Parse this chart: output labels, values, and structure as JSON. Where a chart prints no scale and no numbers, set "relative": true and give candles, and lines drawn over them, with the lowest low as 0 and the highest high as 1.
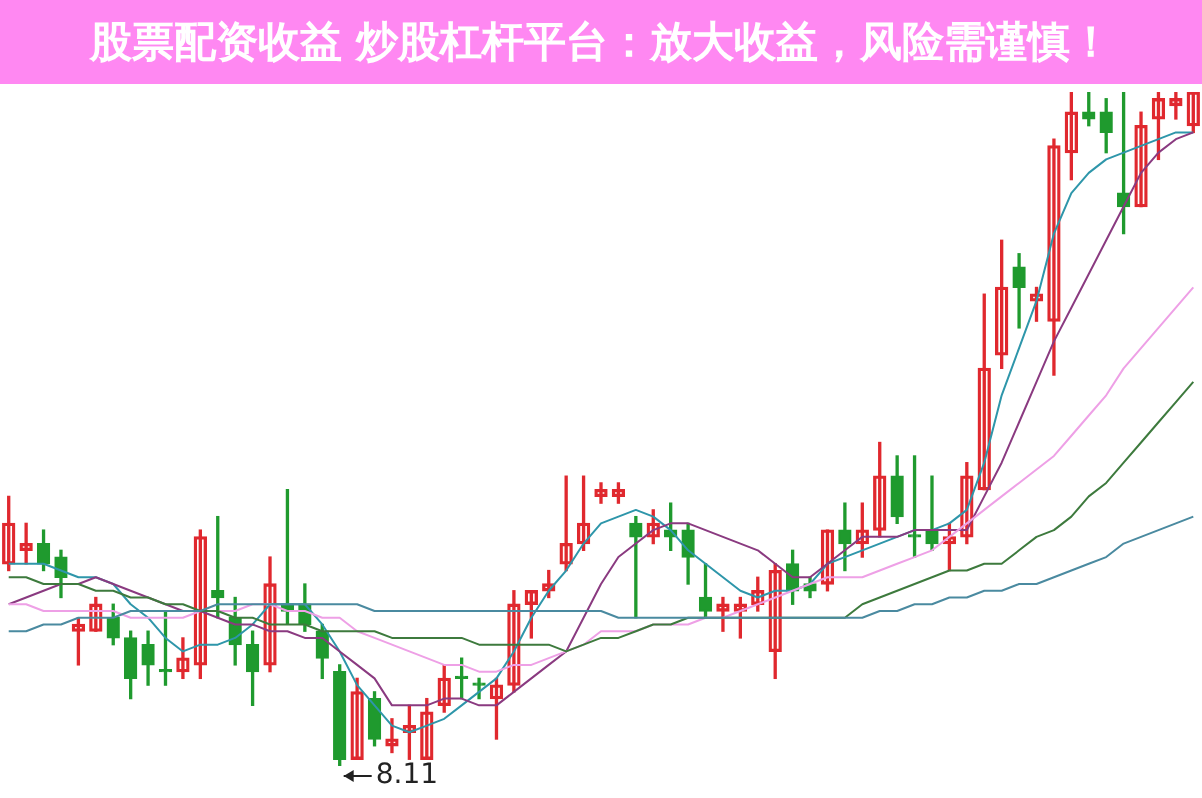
{
  "chart_data": {
    "type": "candlestick",
    "title": "股票配资收益 炒股杠杆平台：放大收益，风险需谨慎！",
    "annotations": [
      "8.11"
    ],
    "relative": true,
    "marker": "none",
    "categories": [
      null,
      null,
      null,
      null,
      null,
      null,
      null,
      null,
      null,
      null,
      null,
      null,
      null,
      null,
      null,
      null,
      null,
      null,
      null,
      null,
      null,
      null,
      null,
      null,
      null,
      null,
      null,
      null,
      null,
      null,
      null,
      null,
      null,
      null,
      null,
      null,
      null,
      null,
      null,
      null,
      null,
      null,
      null,
      null,
      null,
      null,
      null,
      null,
      null,
      null,
      null,
      null,
      null,
      null,
      null,
      null,
      null,
      null,
      null,
      null,
      null,
      null,
      null,
      null,
      null,
      null,
      null,
      null,
      null
    ],
    "ohlc": [
      [
        0.3,
        0.4,
        0.29,
        0.36
      ],
      [
        0.32,
        0.36,
        0.3,
        0.33
      ],
      [
        0.33,
        0.35,
        0.29,
        0.3
      ],
      [
        0.31,
        0.32,
        0.25,
        0.28
      ],
      [
        0.2,
        0.22,
        0.15,
        0.21
      ],
      [
        0.2,
        0.25,
        0.2,
        0.24
      ],
      [
        0.22,
        0.24,
        0.18,
        0.19
      ],
      [
        0.19,
        0.2,
        0.1,
        0.13
      ],
      [
        0.18,
        0.2,
        0.12,
        0.15
      ],
      [
        0.14,
        0.23,
        0.12,
        0.14
      ],
      [
        0.14,
        0.19,
        0.13,
        0.16
      ],
      [
        0.15,
        0.35,
        0.13,
        0.34
      ],
      [
        0.26,
        0.37,
        0.22,
        0.25
      ],
      [
        0.22,
        0.25,
        0.15,
        0.18
      ],
      [
        0.18,
        0.2,
        0.09,
        0.14
      ],
      [
        0.15,
        0.31,
        0.14,
        0.27
      ],
      [
        0.24,
        0.41,
        0.21,
        0.23
      ],
      [
        0.24,
        0.27,
        0.2,
        0.21
      ],
      [
        0.2,
        0.21,
        0.13,
        0.16
      ],
      [
        0.14,
        0.15,
        0,
        0.01
      ],
      [
        0.01,
        0.13,
        0.01,
        0.11
      ],
      [
        0.1,
        0.11,
        0.03,
        0.04
      ],
      [
        0.03,
        0.07,
        0.02,
        0.04
      ],
      [
        0.05,
        0.09,
        0.01,
        0.06
      ],
      [
        0.01,
        0.1,
        0.01,
        0.08
      ],
      [
        0.09,
        0.15,
        0.08,
        0.13
      ],
      [
        0.13,
        0.16,
        0.1,
        0.13
      ],
      [
        0.12,
        0.13,
        0.1,
        0.12
      ],
      [
        0.1,
        0.13,
        0.04,
        0.12
      ],
      [
        0.12,
        0.26,
        0.11,
        0.24
      ],
      [
        0.24,
        0.26,
        0.19,
        0.26
      ],
      [
        0.26,
        0.29,
        0.25,
        0.27
      ],
      [
        0.3,
        0.43,
        0.29,
        0.33
      ],
      [
        0.33,
        0.43,
        0.32,
        0.36
      ],
      [
        0.4,
        0.42,
        0.39,
        0.41
      ],
      [
        0.4,
        0.42,
        0.39,
        0.41
      ],
      [
        0.36,
        0.37,
        0.22,
        0.34
      ],
      [
        0.34,
        0.38,
        0.33,
        0.36
      ],
      [
        0.35,
        0.39,
        0.32,
        0.34
      ],
      [
        0.35,
        0.36,
        0.27,
        0.31
      ],
      [
        0.25,
        0.3,
        0.22,
        0.23
      ],
      [
        0.23,
        0.25,
        0.2,
        0.24
      ],
      [
        0.23,
        0.25,
        0.19,
        0.24
      ],
      [
        0.24,
        0.28,
        0.23,
        0.26
      ],
      [
        0.17,
        0.3,
        0.13,
        0.29
      ],
      [
        0.3,
        0.32,
        0.24,
        0.26
      ],
      [
        0.27,
        0.28,
        0.25,
        0.26
      ],
      [
        0.27,
        0.35,
        0.26,
        0.35
      ],
      [
        0.35,
        0.39,
        0.29,
        0.33
      ],
      [
        0.33,
        0.39,
        0.31,
        0.35
      ],
      [
        0.35,
        0.48,
        0.34,
        0.43
      ],
      [
        0.43,
        0.46,
        0.36,
        0.37
      ],
      [
        0.34,
        0.46,
        0.31,
        0.34
      ],
      [
        0.35,
        0.43,
        0.32,
        0.33
      ],
      [
        0.33,
        0.36,
        0.29,
        0.34
      ],
      [
        0.34,
        0.45,
        0.33,
        0.43
      ],
      [
        0.41,
        0.7,
        0.41,
        0.59
      ],
      [
        0.61,
        0.78,
        0.59,
        0.71
      ],
      [
        0.74,
        0.76,
        0.65,
        0.71
      ],
      [
        0.69,
        0.71,
        0.66,
        0.7
      ],
      [
        0.66,
        0.93,
        0.58,
        0.92
      ],
      [
        0.91,
        1,
        0.87,
        0.97
      ],
      [
        0.97,
        1,
        0.95,
        0.96
      ],
      [
        0.97,
        0.99,
        0.91,
        0.94
      ],
      [
        0.85,
        1,
        0.79,
        0.83
      ],
      [
        0.83,
        0.97,
        0.83,
        0.95
      ],
      [
        0.96,
        1,
        0.9,
        0.99
      ],
      [
        0.98,
        1,
        0.96,
        0.99
      ],
      [
        0.95,
        1,
        0.94,
        1
      ]
    ],
    "colors": [
      "#e0282e",
      "#e0282e",
      "#1f9a2e",
      "#1f9a2e",
      "#e0282e",
      "#e0282e",
      "#1f9a2e",
      "#1f9a2e",
      "#1f9a2e",
      "#1f9a2e",
      "#e0282e",
      "#e0282e",
      "#1f9a2e",
      "#1f9a2e",
      "#1f9a2e",
      "#e0282e",
      "#1f9a2e",
      "#1f9a2e",
      "#1f9a2e",
      "#1f9a2e",
      "#e0282e",
      "#1f9a2e",
      "#e0282e",
      "#e0282e",
      "#e0282e",
      "#e0282e",
      "#1f9a2e",
      "#1f9a2e",
      "#e0282e",
      "#e0282e",
      "#e0282e",
      "#e0282e",
      "#e0282e",
      "#e0282e",
      "#e0282e",
      "#e0282e",
      "#1f9a2e",
      "#e0282e",
      "#1f9a2e",
      "#1f9a2e",
      "#1f9a2e",
      "#e0282e",
      "#e0282e",
      "#e0282e",
      "#e0282e",
      "#1f9a2e",
      "#1f9a2e",
      "#e0282e",
      "#1f9a2e",
      "#e0282e",
      "#e0282e",
      "#1f9a2e",
      "#1f9a2e",
      "#1f9a2e",
      "#e0282e",
      "#e0282e",
      "#e0282e",
      "#e0282e",
      "#1f9a2e",
      "#e0282e",
      "#e0282e",
      "#e0282e",
      "#1f9a2e",
      "#1f9a2e",
      "#1f9a2e",
      "#e0282e",
      "#e0282e",
      "#e0282e",
      "#e0282e"
    ],
    "series": [
      {
        "type": "line",
        "color": "#4a8aa0",
        "values": [
          0.2,
          0.2,
          0.21,
          0.21,
          0.22,
          0.22,
          0.22,
          0.23,
          0.23,
          0.23,
          0.23,
          0.23,
          0.24,
          0.24,
          0.24,
          0.24,
          0.24,
          0.24,
          0.24,
          0.24,
          0.24,
          0.23,
          0.23,
          0.23,
          0.23,
          0.23,
          0.23,
          0.23,
          0.23,
          0.23,
          0.23,
          0.23,
          0.23,
          0.23,
          0.23,
          0.22,
          0.22,
          0.22,
          0.22,
          0.22,
          0.22,
          0.22,
          0.22,
          0.22,
          0.22,
          0.22,
          0.22,
          0.22,
          0.22,
          0.22,
          0.23,
          0.23,
          0.24,
          0.24,
          0.25,
          0.25,
          0.26,
          0.26,
          0.27,
          0.27,
          0.28,
          0.29,
          0.3,
          0.31,
          0.33,
          0.34,
          0.35,
          0.36,
          0.37
        ]
      },
      {
        "type": "line",
        "color": "#3d7a3d",
        "values": [
          0.28,
          0.28,
          0.27,
          0.27,
          0.27,
          0.26,
          0.26,
          0.25,
          0.25,
          0.24,
          0.24,
          0.23,
          0.23,
          0.22,
          0.22,
          0.21,
          0.21,
          0.21,
          0.2,
          0.2,
          0.2,
          0.2,
          0.19,
          0.19,
          0.19,
          0.19,
          0.19,
          0.18,
          0.18,
          0.18,
          0.18,
          0.18,
          0.17,
          0.18,
          0.19,
          0.19,
          0.2,
          0.21,
          0.21,
          0.22,
          0.22,
          0.22,
          0.22,
          0.22,
          0.22,
          0.22,
          0.22,
          0.22,
          0.22,
          0.24,
          0.25,
          0.26,
          0.27,
          0.28,
          0.29,
          0.29,
          0.3,
          0.3,
          0.32,
          0.34,
          0.35,
          0.37,
          0.4,
          0.42,
          0.45,
          0.48,
          0.51,
          0.54,
          0.57
        ]
      },
      {
        "type": "line",
        "color": "#eea0e6",
        "values": [
          0.24,
          0.24,
          0.23,
          0.23,
          0.23,
          0.23,
          0.23,
          0.22,
          0.22,
          0.22,
          0.22,
          0.23,
          0.23,
          0.23,
          0.24,
          0.24,
          0.23,
          0.23,
          0.22,
          0.22,
          0.2,
          0.19,
          0.18,
          0.17,
          0.16,
          0.15,
          0.15,
          0.14,
          0.14,
          0.15,
          0.15,
          0.16,
          0.17,
          0.18,
          0.2,
          0.2,
          0.2,
          0.21,
          0.21,
          0.21,
          0.22,
          0.22,
          0.23,
          0.24,
          0.25,
          0.26,
          0.27,
          0.28,
          0.28,
          0.28,
          0.29,
          0.3,
          0.31,
          0.32,
          0.34,
          0.36,
          0.38,
          0.4,
          0.42,
          0.44,
          0.46,
          0.49,
          0.52,
          0.55,
          0.59,
          0.62,
          0.65,
          0.68,
          0.71
        ]
      },
      {
        "type": "line",
        "color": "#8a3a80",
        "values": [
          0.24,
          0.25,
          0.26,
          0.27,
          0.27,
          0.28,
          0.27,
          0.26,
          0.25,
          0.24,
          0.23,
          0.23,
          0.22,
          0.21,
          0.21,
          0.2,
          0.2,
          0.19,
          0.19,
          0.17,
          0.15,
          0.13,
          0.09,
          0.09,
          0.09,
          0.1,
          0.1,
          0.09,
          0.09,
          0.11,
          0.13,
          0.15,
          0.17,
          0.22,
          0.27,
          0.31,
          0.33,
          0.35,
          0.36,
          0.36,
          0.35,
          0.34,
          0.33,
          0.32,
          0.3,
          0.28,
          0.28,
          0.3,
          0.32,
          0.34,
          0.34,
          0.34,
          0.35,
          0.35,
          0.35,
          0.35,
          0.4,
          0.45,
          0.51,
          0.57,
          0.63,
          0.68,
          0.73,
          0.78,
          0.83,
          0.88,
          0.91,
          0.93,
          0.94
        ]
      },
      {
        "type": "line",
        "color": "#2e96aa",
        "values": [
          0.3,
          0.3,
          0.3,
          0.29,
          0.28,
          0.28,
          0.27,
          0.24,
          0.22,
          0.19,
          0.17,
          0.18,
          0.18,
          0.19,
          0.21,
          0.24,
          0.24,
          0.24,
          0.21,
          0.17,
          0.12,
          0.09,
          0.06,
          0.05,
          0.06,
          0.07,
          0.09,
          0.11,
          0.13,
          0.17,
          0.22,
          0.26,
          0.29,
          0.33,
          0.36,
          0.37,
          0.38,
          0.37,
          0.35,
          0.32,
          0.3,
          0.28,
          0.26,
          0.25,
          0.26,
          0.26,
          0.27,
          0.3,
          0.31,
          0.32,
          0.33,
          0.34,
          0.35,
          0.35,
          0.36,
          0.38,
          0.45,
          0.55,
          0.62,
          0.69,
          0.79,
          0.85,
          0.88,
          0.9,
          0.91,
          0.92,
          0.93,
          0.94,
          0.94
        ]
      }
    ]
  }
}
